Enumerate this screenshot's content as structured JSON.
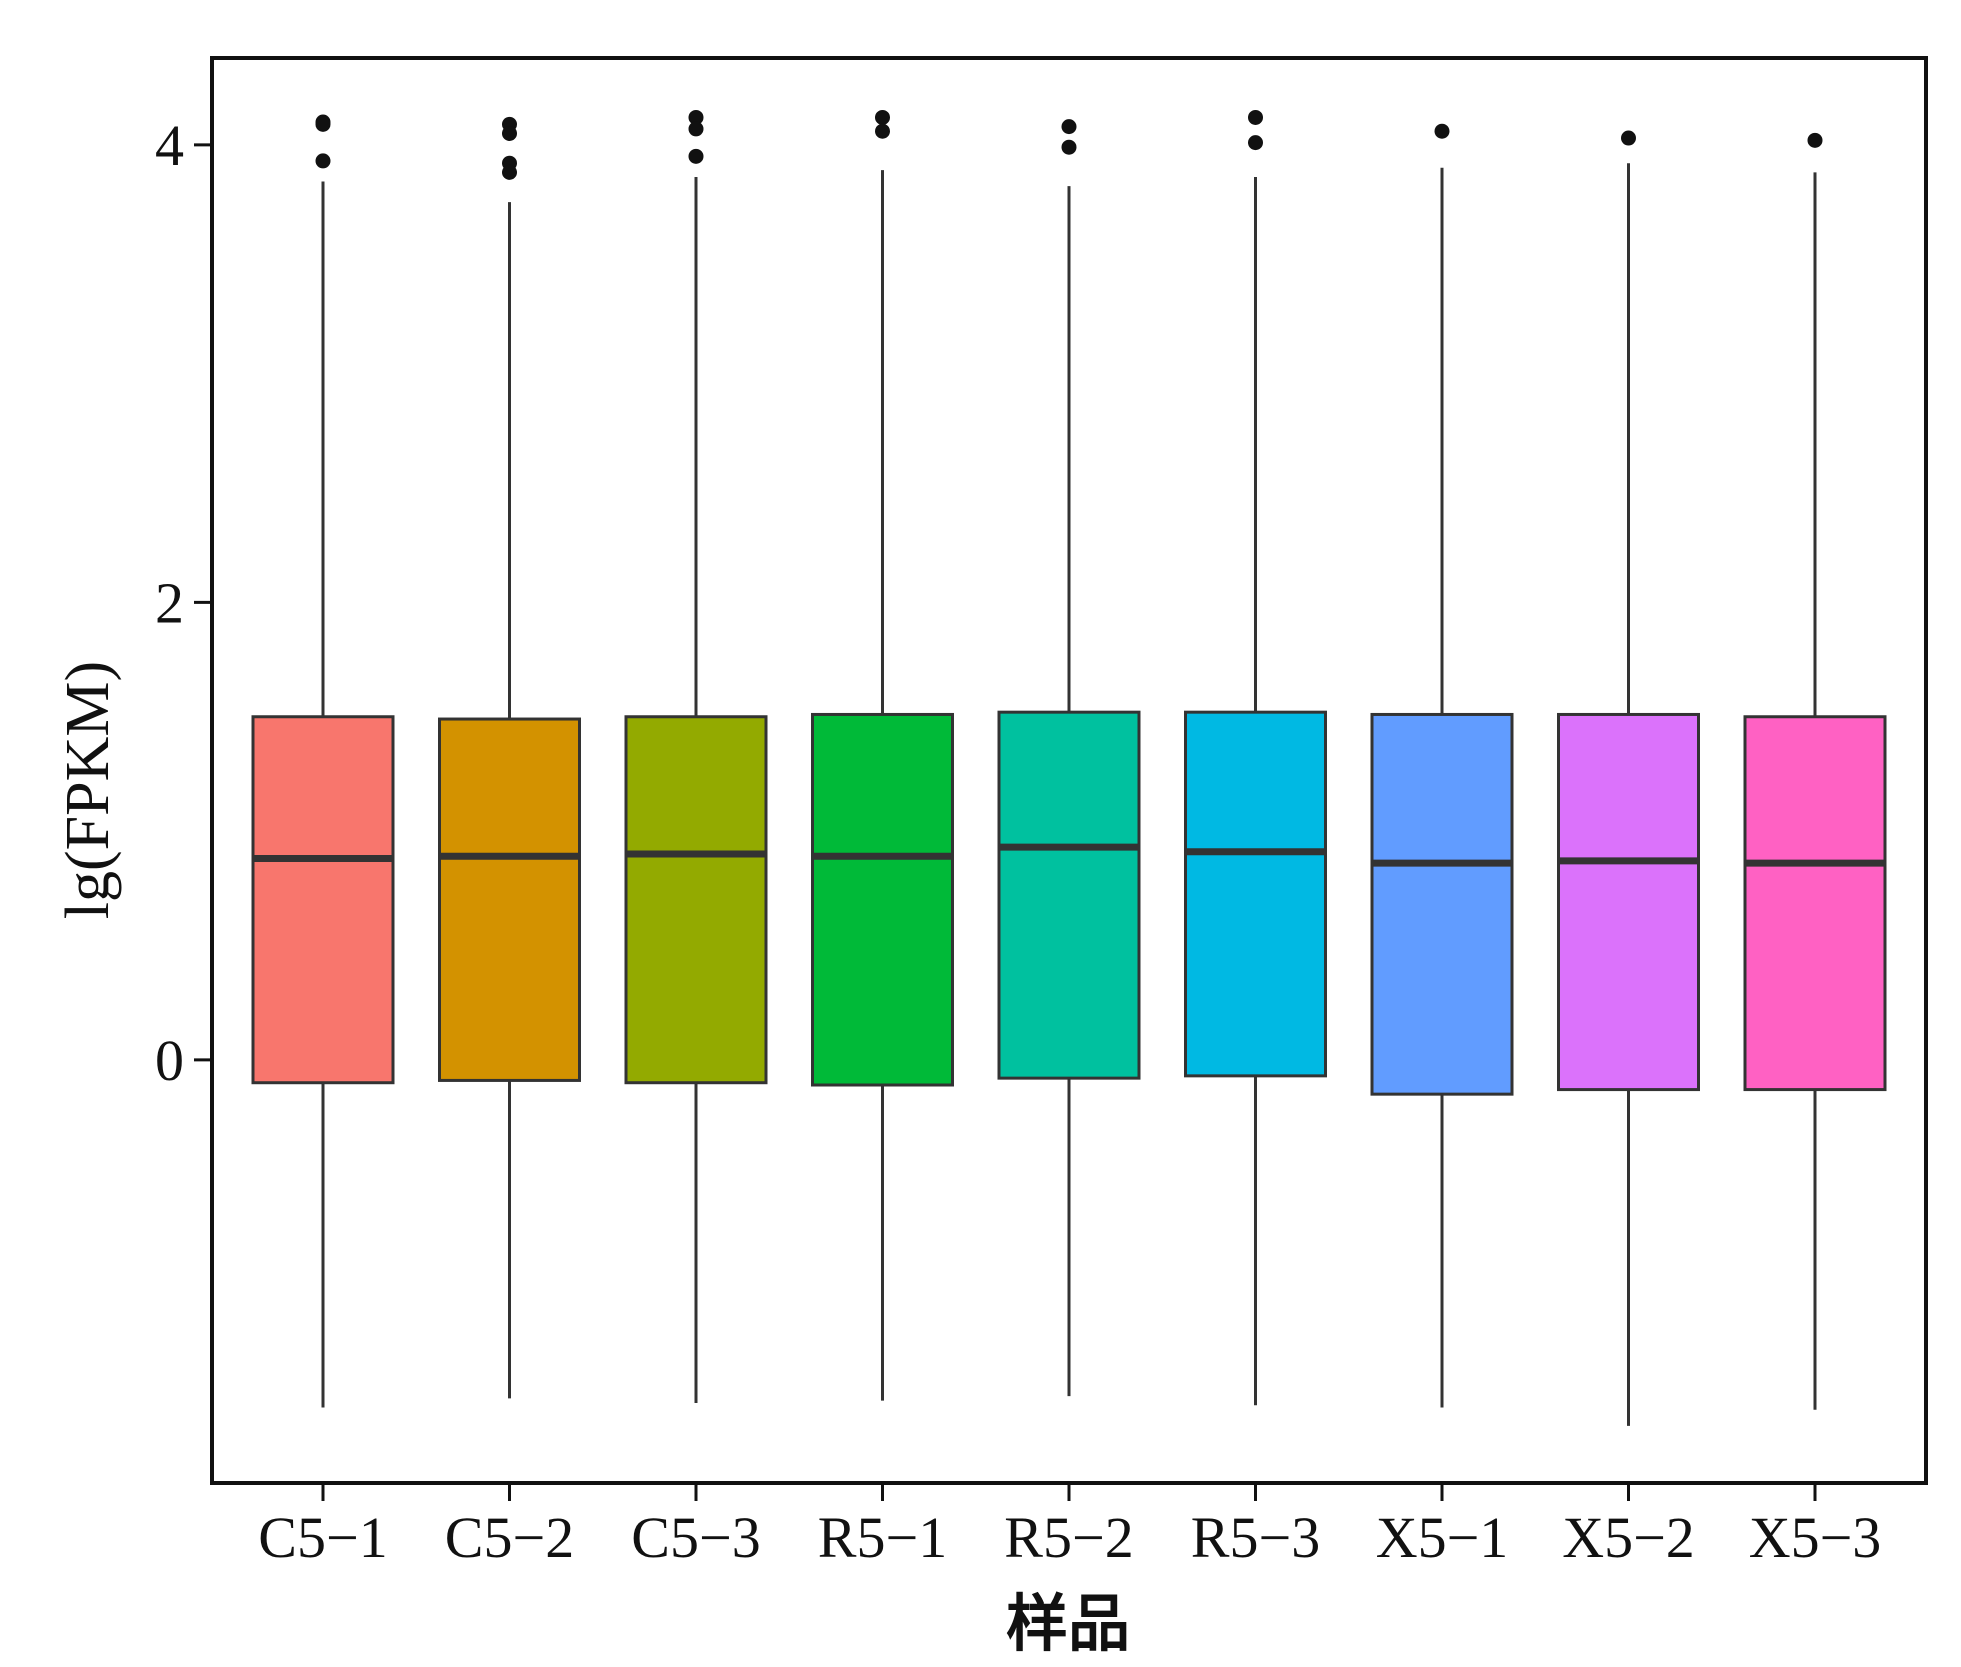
{
  "chart_data": {
    "type": "box",
    "xlabel": "样品",
    "ylabel": "lg(FPKM)",
    "ylim": [
      -1.85,
      4.38
    ],
    "yticks": [
      0,
      2,
      4
    ],
    "grid": false,
    "legend": "none",
    "categories": [
      "C5−1",
      "C5−2",
      "C5−3",
      "R5−1",
      "R5−2",
      "R5−3",
      "X5−1",
      "X5−2",
      "X5−3"
    ],
    "colors": [
      "#F8766D",
      "#D39200",
      "#93AA00",
      "#00BA38",
      "#00C19F",
      "#00B9E3",
      "#619CFF",
      "#DB72FB",
      "#FF61C3"
    ],
    "boxes": [
      {
        "whisker_low": -1.52,
        "q1": -0.1,
        "median": 0.88,
        "q3": 1.5,
        "whisker_high": 3.84,
        "outliers": [
          4.1,
          4.09,
          3.93
        ]
      },
      {
        "whisker_low": -1.48,
        "q1": -0.09,
        "median": 0.89,
        "q3": 1.49,
        "whisker_high": 3.75,
        "outliers": [
          4.09,
          4.05,
          3.92,
          3.88
        ]
      },
      {
        "whisker_low": -1.5,
        "q1": -0.1,
        "median": 0.9,
        "q3": 1.5,
        "whisker_high": 3.86,
        "outliers": [
          4.12,
          4.07,
          3.95
        ]
      },
      {
        "whisker_low": -1.49,
        "q1": -0.11,
        "median": 0.89,
        "q3": 1.51,
        "whisker_high": 3.89,
        "outliers": [
          4.12,
          4.06
        ]
      },
      {
        "whisker_low": -1.47,
        "q1": -0.08,
        "median": 0.93,
        "q3": 1.52,
        "whisker_high": 3.82,
        "outliers": [
          4.08,
          3.99
        ]
      },
      {
        "whisker_low": -1.51,
        "q1": -0.07,
        "median": 0.91,
        "q3": 1.52,
        "whisker_high": 3.86,
        "outliers": [
          4.12,
          4.01
        ]
      },
      {
        "whisker_low": -1.52,
        "q1": -0.15,
        "median": 0.86,
        "q3": 1.51,
        "whisker_high": 3.9,
        "outliers": [
          4.06
        ]
      },
      {
        "whisker_low": -1.6,
        "q1": -0.13,
        "median": 0.87,
        "q3": 1.51,
        "whisker_high": 3.92,
        "outliers": [
          4.03
        ]
      },
      {
        "whisker_low": -1.53,
        "q1": -0.13,
        "median": 0.86,
        "q3": 1.5,
        "whisker_high": 3.88,
        "outliers": [
          4.02
        ]
      }
    ]
  }
}
